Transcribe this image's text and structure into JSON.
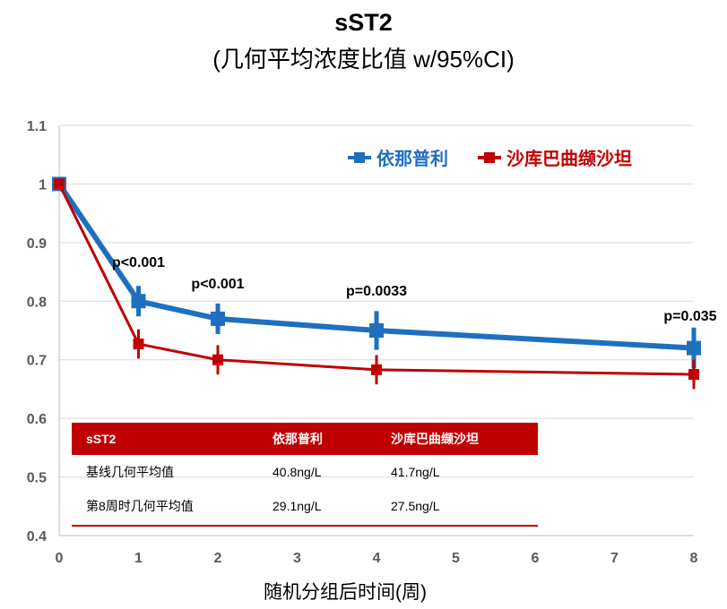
{
  "chart_data": {
    "type": "line",
    "title": "sST2",
    "subtitle": "(几何平均浓度比值 w/95%CI)",
    "xlabel": "随机分组后时间(周)",
    "ylabel": "",
    "xlim": [
      0,
      8
    ],
    "ylim": [
      0.4,
      1.1
    ],
    "x_ticks": [
      0,
      1,
      2,
      3,
      4,
      5,
      6,
      7,
      8
    ],
    "y_ticks": [
      "0.4",
      "0.5",
      "0.6",
      "0.7",
      "0.8",
      "0.9",
      "1",
      "1.1"
    ],
    "grid": "horizontal",
    "legend_placement": "top-right",
    "series": [
      {
        "name": "依那普利",
        "color": "#1f6fc0",
        "x": [
          0,
          1,
          2,
          4,
          8
        ],
        "values": [
          1.0,
          0.8,
          0.77,
          0.75,
          0.72
        ],
        "ci_half": [
          0,
          0.026,
          0.026,
          0.033,
          0.035
        ]
      },
      {
        "name": "沙库巴曲缬沙坦",
        "color": "#c00000",
        "x": [
          0,
          1,
          2,
          4,
          8
        ],
        "values": [
          1.0,
          0.727,
          0.7,
          0.683,
          0.675
        ],
        "ci_half": [
          0,
          0.025,
          0.025,
          0.025,
          0.025
        ]
      }
    ],
    "annotations": [
      {
        "x": 1,
        "text": "p<0.001"
      },
      {
        "x": 2,
        "text": "p<0.001"
      },
      {
        "x": 4,
        "text": "p=0.0033"
      },
      {
        "x": 8,
        "text": "p=0.035"
      }
    ]
  },
  "table": {
    "header": [
      "sST2",
      "依那普利",
      "沙库巴曲缬沙坦"
    ],
    "rows": [
      [
        "基线几何平均值",
        "40.8ng/L",
        "41.7ng/L"
      ],
      [
        "第8周时几何平均值",
        "29.1ng/L",
        "27.5ng/L"
      ]
    ],
    "accent": "#c00000"
  }
}
